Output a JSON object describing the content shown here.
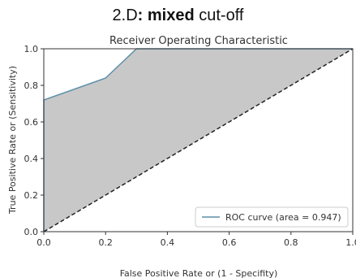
{
  "figure": {
    "heading_prefix": "2.D",
    "heading_bold": ": mixed",
    "heading_suffix": " cut-off"
  },
  "chart_data": {
    "type": "area",
    "title": "Receiver Operating Characteristic",
    "xlabel": "False Positive Rate or (1 - Specifity)",
    "ylabel": "True Positive Rate or (Sensitivity)",
    "xlim": [
      0.0,
      1.0
    ],
    "ylim": [
      0.0,
      1.0
    ],
    "xticks": [
      "0.0",
      "0.2",
      "0.4",
      "0.6",
      "0.8",
      "1.0"
    ],
    "yticks": [
      "0.0",
      "0.2",
      "0.4",
      "0.6",
      "0.8",
      "1.0"
    ],
    "grid": false,
    "legend_position": "lower-right",
    "series": [
      {
        "name": "ROC curve (area = 0.947)",
        "color": "#5b8fa8",
        "x": [
          0.0,
          0.0,
          0.2,
          0.3,
          1.0
        ],
        "y": [
          0.0,
          0.72,
          0.84,
          1.0,
          1.0
        ]
      }
    ],
    "reference_line": {
      "x": [
        0.0,
        1.0
      ],
      "y": [
        0.0,
        1.0
      ],
      "color": "#222222",
      "style": "dashed"
    },
    "fill_color": "#c8c8c8"
  }
}
